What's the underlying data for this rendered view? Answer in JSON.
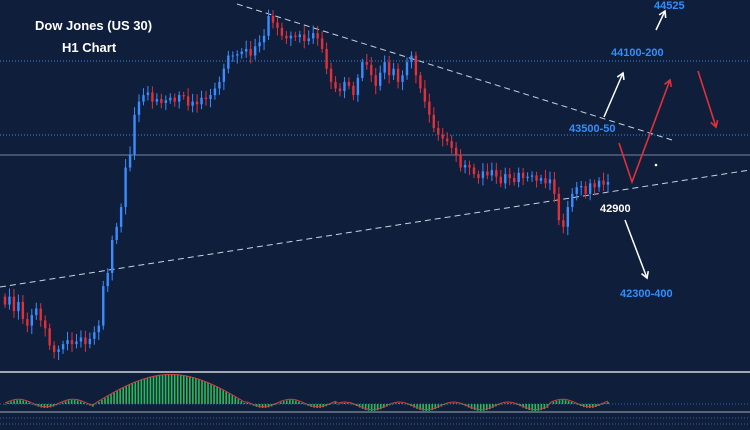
{
  "chart_data": {
    "type": "candlestick",
    "title": "Dow Jones (US 30)",
    "subtitle": "H1 Chart",
    "colors": {
      "background": "#0f1f3b",
      "bull": "#3a8cff",
      "bear": "#e0303a",
      "level_line": "#2f8fff",
      "trendline": "#c8d2e0",
      "arrow_bull": "#ffffff",
      "arrow_bear": "#e0303a",
      "osc_pos": "#2ecc5b",
      "osc_signal": "#d04040"
    },
    "horizontal_levels": [
      {
        "value": 44100,
        "label": "44100-200"
      },
      {
        "value": 43500,
        "label": "43500-50"
      }
    ],
    "support_label": "42900",
    "target_down_label": "42300-400",
    "target_up_label": "44525",
    "closes": [
      42360,
      42420,
      42310,
      42380,
      42250,
      42200,
      42280,
      42330,
      42240,
      42180,
      42050,
      42000,
      42020,
      42060,
      42090,
      42060,
      42080,
      42110,
      42060,
      42100,
      42150,
      42200,
      42500,
      42600,
      42850,
      42950,
      43100,
      43400,
      43500,
      43800,
      43900,
      43950,
      43970,
      43900,
      43920,
      43890,
      43910,
      43930,
      43900,
      43950,
      43940,
      43870,
      43900,
      43880,
      43930,
      43920,
      43950,
      44000,
      44050,
      44150,
      44250,
      44250,
      44260,
      44280,
      44300,
      44250,
      44320,
      44350,
      44400,
      44550,
      44500,
      44460,
      44400,
      44380,
      44400,
      44390,
      44410,
      44360,
      44380,
      44420,
      44380,
      44300,
      44150,
      44050,
      44000,
      43980,
      44050,
      44020,
      43950,
      44080,
      44200,
      44180,
      44100,
      44020,
      44120,
      44200,
      44100,
      44150,
      44050,
      44100,
      44200,
      44250,
      44100,
      44000,
      43900,
      43800,
      43700,
      43650,
      43620,
      43600,
      43550,
      43500,
      43400,
      43420,
      43400,
      43350,
      43320,
      43370,
      43340,
      43380,
      43330,
      43280,
      43350,
      43320,
      43290,
      43360,
      43320,
      43330,
      43340,
      43300,
      43320,
      43280,
      43310,
      43200,
      43000,
      42950,
      43100,
      43200,
      43250,
      43260,
      43200,
      43280,
      43250,
      43300,
      43270,
      43290
    ]
  }
}
